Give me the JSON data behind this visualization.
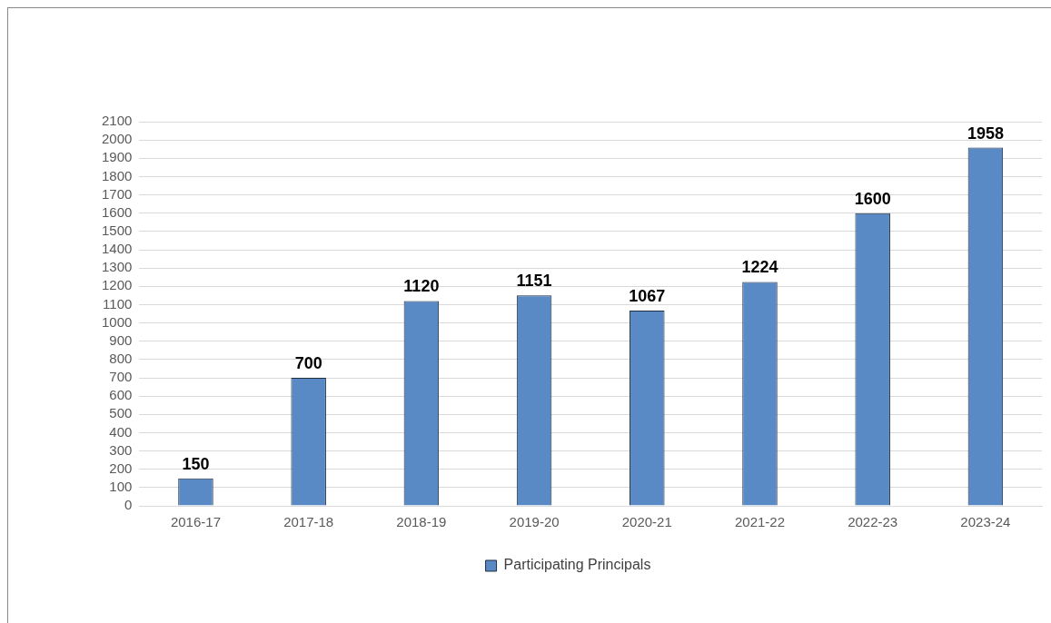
{
  "chart_data": {
    "type": "bar",
    "categories": [
      "2016-17",
      "2017-18",
      "2018-19",
      "2019-20",
      "2020-21",
      "2021-22",
      "2022-23",
      "2023-24"
    ],
    "series": [
      {
        "name": "Participating Principals",
        "color": "#5a8ac6",
        "values": [
          150,
          700,
          1120,
          1151,
          1067,
          1224,
          1600,
          1958
        ]
      }
    ],
    "ylim": [
      0,
      2100
    ],
    "yticks": [
      0,
      100,
      200,
      300,
      400,
      500,
      600,
      700,
      800,
      900,
      1000,
      1100,
      1200,
      1300,
      1400,
      1500,
      1600,
      1700,
      1800,
      1900,
      2000,
      2100
    ],
    "grid": "y",
    "legend": "bottom",
    "data_labels": true
  }
}
